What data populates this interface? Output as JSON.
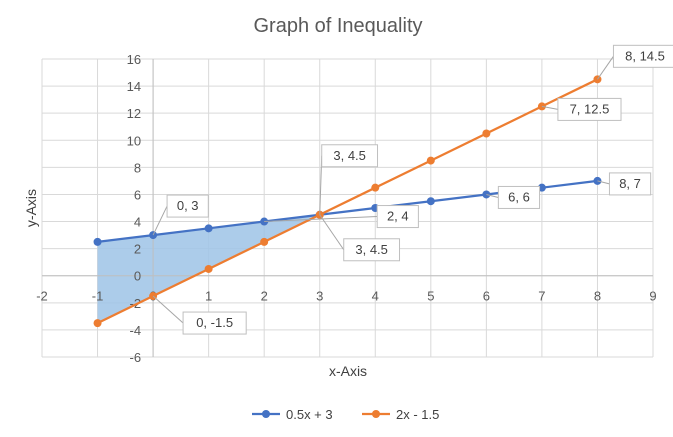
{
  "chart_data": {
    "type": "line",
    "title": "Graph of Inequality",
    "xlabel": "x-Axis",
    "ylabel": "y-Axis",
    "xlim": [
      -2,
      9
    ],
    "ylim": [
      -6,
      16
    ],
    "x_ticks": [
      "-2",
      "-1",
      "0",
      "1",
      "2",
      "3",
      "4",
      "5",
      "6",
      "7",
      "8",
      "9"
    ],
    "y_ticks": [
      "-6",
      "-4",
      "-2",
      "0",
      "2",
      "4",
      "6",
      "8",
      "10",
      "12",
      "14",
      "16"
    ],
    "grid": true,
    "legend_position": "bottom",
    "shaded_region": {
      "description_color": "#9dc3e6",
      "x_range": [
        -1,
        3
      ]
    },
    "series": [
      {
        "name": "0.5x + 3",
        "color": "#4472c4",
        "x": [
          -1,
          0,
          1,
          2,
          3,
          4,
          5,
          6,
          7,
          8
        ],
        "y": [
          2.5,
          3,
          3.5,
          4,
          4.5,
          5,
          5.5,
          6,
          6.5,
          7
        ]
      },
      {
        "name": "2x - 1.5",
        "color": "#ed7d31",
        "x": [
          -1,
          0,
          1,
          2,
          3,
          4,
          5,
          6,
          7,
          8
        ],
        "y": [
          -3.5,
          -1.5,
          0.5,
          2.5,
          4.5,
          6.5,
          8.5,
          10.5,
          12.5,
          14.5
        ]
      }
    ],
    "data_labels": [
      {
        "text": "0, 3",
        "series": 0,
        "index": 1
      },
      {
        "text": "2, 4",
        "series": 0,
        "index": 3
      },
      {
        "text": "3, 4.5",
        "series": 0,
        "index": 4
      },
      {
        "text": "6, 6",
        "series": 0,
        "index": 7
      },
      {
        "text": "8, 7",
        "series": 0,
        "index": 9
      },
      {
        "text": "0, -1.5",
        "series": 1,
        "index": 1
      },
      {
        "text": "3, 4.5",
        "series": 1,
        "index": 4
      },
      {
        "text": "7, 12.5",
        "series": 1,
        "index": 8
      },
      {
        "text": "8, 14.5",
        "series": 1,
        "index": 9
      }
    ]
  }
}
